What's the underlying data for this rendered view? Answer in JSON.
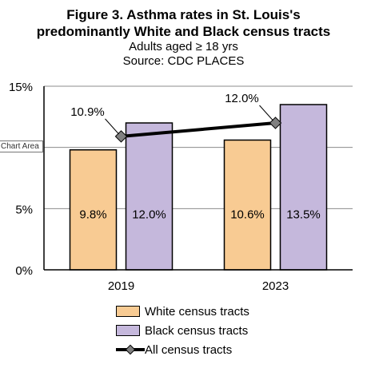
{
  "chart_data": {
    "type": "bar",
    "title_line1": "Figure 3. Asthma rates in St. Louis's",
    "title_line2": "predominantly White and Black census tracts",
    "subtitle_line1": "Adults aged ≥ 18 yrs",
    "subtitle_line2": "Source: CDC PLACES",
    "categories": [
      "2019",
      "2023"
    ],
    "series": [
      {
        "name": "White census tracts",
        "values": [
          9.8,
          10.6
        ],
        "labels": [
          "9.8%",
          "10.6%"
        ],
        "color": "#F8CB93"
      },
      {
        "name": "Black census tracts",
        "values": [
          12.0,
          13.5
        ],
        "labels": [
          "12.0%",
          "13.5%"
        ],
        "color": "#C5B8DC"
      },
      {
        "name": "All census tracts",
        "type": "line",
        "values": [
          10.9,
          12.0
        ],
        "labels": [
          "10.9%",
          "12.0%"
        ],
        "color": "#000000",
        "marker_color": "#808080"
      }
    ],
    "ylim": [
      0,
      15
    ],
    "yticks": [
      0,
      5,
      10,
      15
    ],
    "ytick_labels": [
      "0%",
      "5%",
      "10%",
      "15%"
    ],
    "grid": true,
    "legend_position": "bottom"
  },
  "tooltip": "Chart Area"
}
